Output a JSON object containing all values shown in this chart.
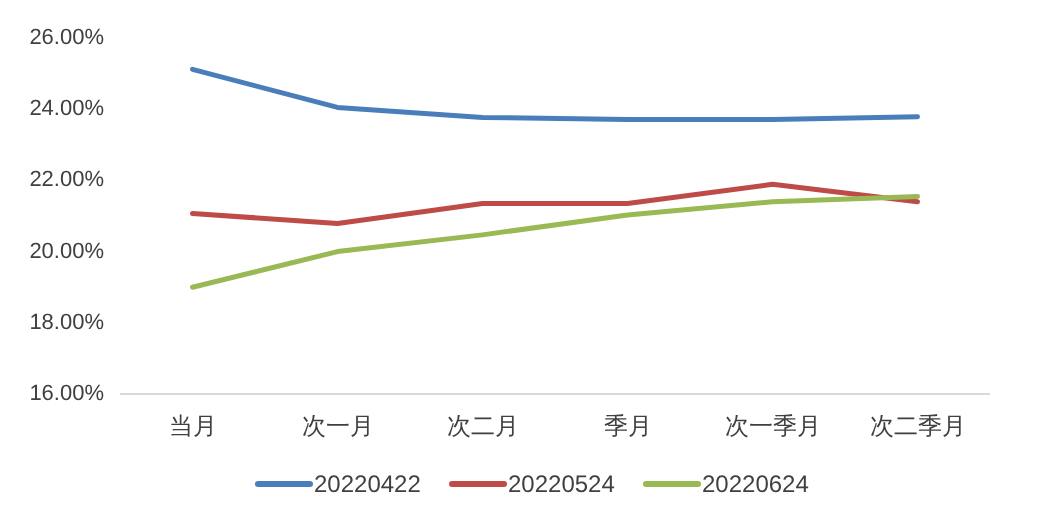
{
  "chart_data": {
    "type": "line",
    "categories": [
      "当月",
      "次一月",
      "次二月",
      "季月",
      "次一季月",
      "次二季月"
    ],
    "series": [
      {
        "name": "20220422",
        "color": "#4a7ebb",
        "values": [
          25.12,
          24.05,
          23.77,
          23.71,
          23.71,
          23.79
        ]
      },
      {
        "name": "20220524",
        "color": "#be4b48",
        "values": [
          21.07,
          20.79,
          21.35,
          21.35,
          21.89,
          21.4
        ]
      },
      {
        "name": "20220624",
        "color": "#98b954",
        "values": [
          19.0,
          20.0,
          20.47,
          21.03,
          21.4,
          21.55
        ]
      }
    ],
    "ylim": [
      16,
      26
    ],
    "yticks": [
      {
        "value": 16,
        "label": "16.00%"
      },
      {
        "value": 18,
        "label": "18.00%"
      },
      {
        "value": 20,
        "label": "20.00%"
      },
      {
        "value": 22,
        "label": "22.00%"
      },
      {
        "value": 24,
        "label": "24.00%"
      },
      {
        "value": 26,
        "label": "26.00%"
      }
    ],
    "grid": false,
    "legend": "bottom",
    "marker": "none",
    "line_style": "solid"
  }
}
